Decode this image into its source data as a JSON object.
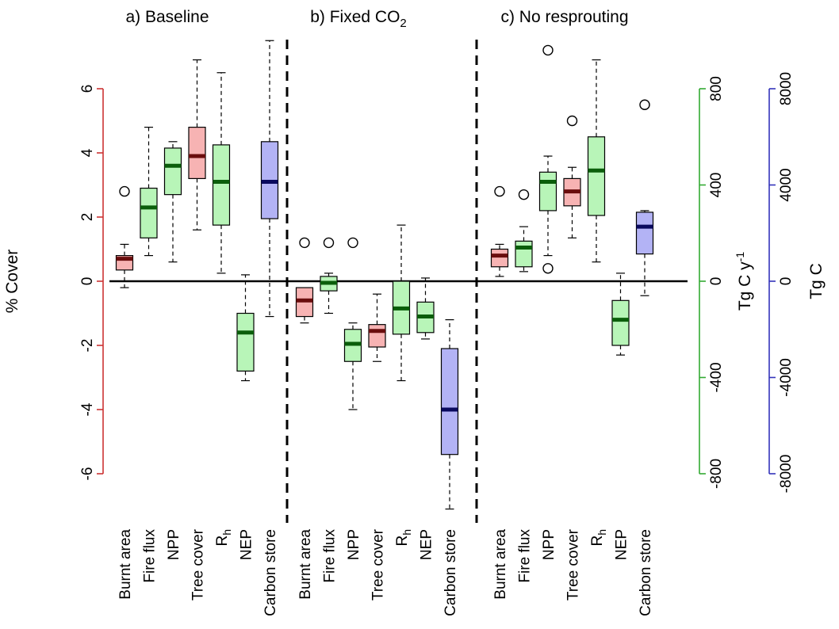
{
  "chart_data": {
    "type": "boxplot",
    "panels": [
      {
        "title_main": "a) Baseline",
        "title_sub": ""
      },
      {
        "title_main": "b) Fixed CO",
        "title_sub": "2"
      },
      {
        "title_main": "c) No resprouting",
        "title_sub": ""
      }
    ],
    "categories": [
      {
        "main": "Burnt area",
        "sub": ""
      },
      {
        "main": "Fire flux",
        "sub": ""
      },
      {
        "main": "NPP",
        "sub": ""
      },
      {
        "main": "Tree cover",
        "sub": ""
      },
      {
        "main": "R",
        "sub": "h"
      },
      {
        "main": "NEP",
        "sub": ""
      },
      {
        "main": "Carbon store",
        "sub": ""
      }
    ],
    "category_axis": [
      "cover",
      "tgcy",
      "tgcy",
      "cover",
      "tgcy",
      "tgcy",
      "tgc"
    ],
    "axes": {
      "cover": {
        "title": "% Cover",
        "ticks": [
          -6,
          -4,
          -2,
          0,
          2,
          4,
          6
        ],
        "range": [
          -6,
          6
        ],
        "color": "#cc3333"
      },
      "tgcy": {
        "title_main": "Tg C y",
        "title_sup": "-1",
        "ticks": [
          -800,
          -400,
          0,
          400,
          800
        ],
        "range": [
          -800,
          800
        ],
        "color": "#33aa33"
      },
      "tgc": {
        "title": "Tg C",
        "ticks": [
          -8000,
          -4000,
          0,
          4000,
          8000
        ],
        "range": [
          -8000,
          8000
        ],
        "color": "#3333bb"
      }
    },
    "colors": {
      "cover": {
        "fill": "#f7b3b3",
        "median": "#6a0d0d"
      },
      "tgcy": {
        "fill": "#b8f5b8",
        "median": "#0b5e0b"
      },
      "tgc": {
        "fill": "#b3b3f5",
        "median": "#0a0a5e"
      }
    },
    "boxes": [
      [
        {
          "wlo": -0.2,
          "q1": 0.35,
          "med": 0.7,
          "q3": 0.8,
          "whi": 1.15,
          "outliers": [
            2.8
          ]
        },
        {
          "wlo": 0.8,
          "q1": 1.35,
          "med": 2.3,
          "q3": 2.9,
          "whi": 4.8,
          "outliers": []
        },
        {
          "wlo": 0.6,
          "q1": 2.7,
          "med": 3.6,
          "q3": 4.15,
          "whi": 4.35,
          "outliers": []
        },
        {
          "wlo": 1.6,
          "q1": 3.2,
          "med": 3.9,
          "q3": 4.8,
          "whi": 6.9,
          "outliers": []
        },
        {
          "wlo": 0.25,
          "q1": 1.75,
          "med": 3.1,
          "q3": 4.25,
          "whi": 6.5,
          "outliers": []
        },
        {
          "wlo": -3.1,
          "q1": -2.8,
          "med": -1.6,
          "q3": -1.0,
          "whi": 0.2,
          "outliers": []
        },
        {
          "wlo": -1.1,
          "q1": 1.95,
          "med": 3.1,
          "q3": 4.35,
          "whi": 7.5,
          "outliers": []
        }
      ],
      [
        {
          "wlo": -1.3,
          "q1": -1.1,
          "med": -0.6,
          "q3": -0.2,
          "whi": -0.2,
          "outliers": [
            1.2
          ]
        },
        {
          "wlo": -1.0,
          "q1": -0.3,
          "med": -0.05,
          "q3": 0.15,
          "whi": 0.25,
          "outliers": [
            1.2
          ]
        },
        {
          "wlo": -4.0,
          "q1": -2.5,
          "med": -1.95,
          "q3": -1.5,
          "whi": -1.3,
          "outliers": [
            1.2
          ]
        },
        {
          "wlo": -2.5,
          "q1": -2.05,
          "med": -1.55,
          "q3": -1.35,
          "whi": -0.4,
          "outliers": []
        },
        {
          "wlo": -3.1,
          "q1": -1.65,
          "med": -0.85,
          "q3": 0.0,
          "whi": 1.75,
          "outliers": []
        },
        {
          "wlo": -1.8,
          "q1": -1.6,
          "med": -1.1,
          "q3": -0.65,
          "whi": 0.1,
          "outliers": []
        },
        {
          "wlo": -7.1,
          "q1": -5.4,
          "med": -4.0,
          "q3": -2.1,
          "whi": -1.2,
          "outliers": []
        }
      ],
      [
        {
          "wlo": 0.15,
          "q1": 0.45,
          "med": 0.8,
          "q3": 1.0,
          "whi": 1.15,
          "outliers": [
            2.8
          ]
        },
        {
          "wlo": 0.3,
          "q1": 0.45,
          "med": 1.05,
          "q3": 1.25,
          "whi": 1.7,
          "outliers": [
            2.7
          ]
        },
        {
          "wlo": 0.8,
          "q1": 2.2,
          "med": 3.1,
          "q3": 3.4,
          "whi": 3.9,
          "outliers": [
            7.2,
            0.4
          ]
        },
        {
          "wlo": 1.35,
          "q1": 2.35,
          "med": 2.8,
          "q3": 3.2,
          "whi": 3.55,
          "outliers": [
            5.0
          ]
        },
        {
          "wlo": 0.6,
          "q1": 2.05,
          "med": 3.45,
          "q3": 4.5,
          "whi": 6.9,
          "outliers": []
        },
        {
          "wlo": -2.3,
          "q1": -2.0,
          "med": -1.2,
          "q3": -0.6,
          "whi": 0.25,
          "outliers": []
        },
        {
          "wlo": -0.45,
          "q1": 0.85,
          "med": 1.7,
          "q3": 2.15,
          "whi": 2.2,
          "outliers": [
            5.5
          ]
        }
      ]
    ]
  }
}
